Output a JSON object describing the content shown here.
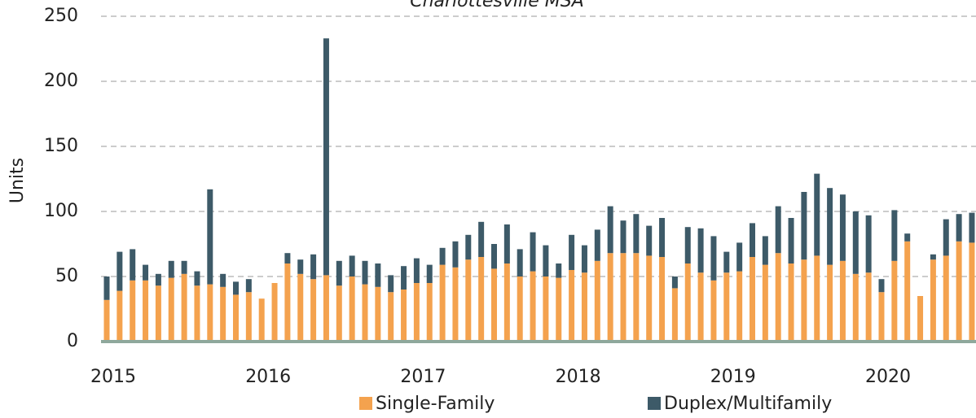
{
  "chart_data": {
    "type": "stacked_bar",
    "title": "Charlottesville MSA",
    "y_label": "Units",
    "categories": [
      "2015",
      null,
      null,
      null,
      null,
      null,
      null,
      null,
      null,
      null,
      null,
      null,
      "2016",
      null,
      null,
      null,
      null,
      null,
      null,
      null,
      null,
      null,
      null,
      null,
      "2017",
      null,
      null,
      null,
      null,
      null,
      null,
      null,
      null,
      null,
      null,
      null,
      "2018",
      null,
      null,
      null,
      null,
      null,
      null,
      null,
      null,
      null,
      null,
      null,
      "2019",
      null,
      null,
      null,
      null,
      null,
      null,
      null,
      null,
      null,
      null,
      null,
      "2020",
      null,
      null,
      null,
      null,
      null,
      null,
      null
    ],
    "series": [
      {
        "name": "Single-Family",
        "color": "#f4a24e",
        "values": [
          32,
          39,
          47,
          47,
          43,
          49,
          52,
          43,
          44,
          42,
          36,
          38,
          33,
          45,
          60,
          52,
          48,
          51,
          43,
          50,
          44,
          42,
          38,
          40,
          45,
          45,
          59,
          57,
          63,
          65,
          56,
          60,
          50,
          54,
          50,
          49,
          55,
          53,
          62,
          68,
          68,
          68,
          66,
          65,
          41,
          60,
          53,
          47,
          53,
          54,
          65,
          59,
          68,
          60,
          63,
          66,
          59,
          62,
          52,
          53,
          38,
          62,
          77,
          35,
          63,
          66,
          77,
          76
        ]
      },
      {
        "name": "Duplex/Multifamily",
        "color": "#3d5a68",
        "values": [
          18,
          30,
          24,
          12,
          9,
          13,
          10,
          11,
          73,
          10,
          10,
          10,
          0,
          0,
          8,
          11,
          19,
          182,
          19,
          16,
          18,
          18,
          13,
          18,
          19,
          14,
          13,
          20,
          19,
          27,
          19,
          30,
          21,
          30,
          24,
          11,
          27,
          21,
          24,
          36,
          25,
          30,
          23,
          30,
          9,
          28,
          34,
          34,
          16,
          22,
          26,
          22,
          36,
          35,
          52,
          63,
          59,
          51,
          48,
          44,
          10,
          39,
          6,
          0,
          4,
          28,
          21,
          23
        ]
      }
    ],
    "ylim": [
      0,
      250
    ],
    "yticks": [
      0,
      50,
      100,
      150,
      200,
      250
    ],
    "grid": true
  }
}
